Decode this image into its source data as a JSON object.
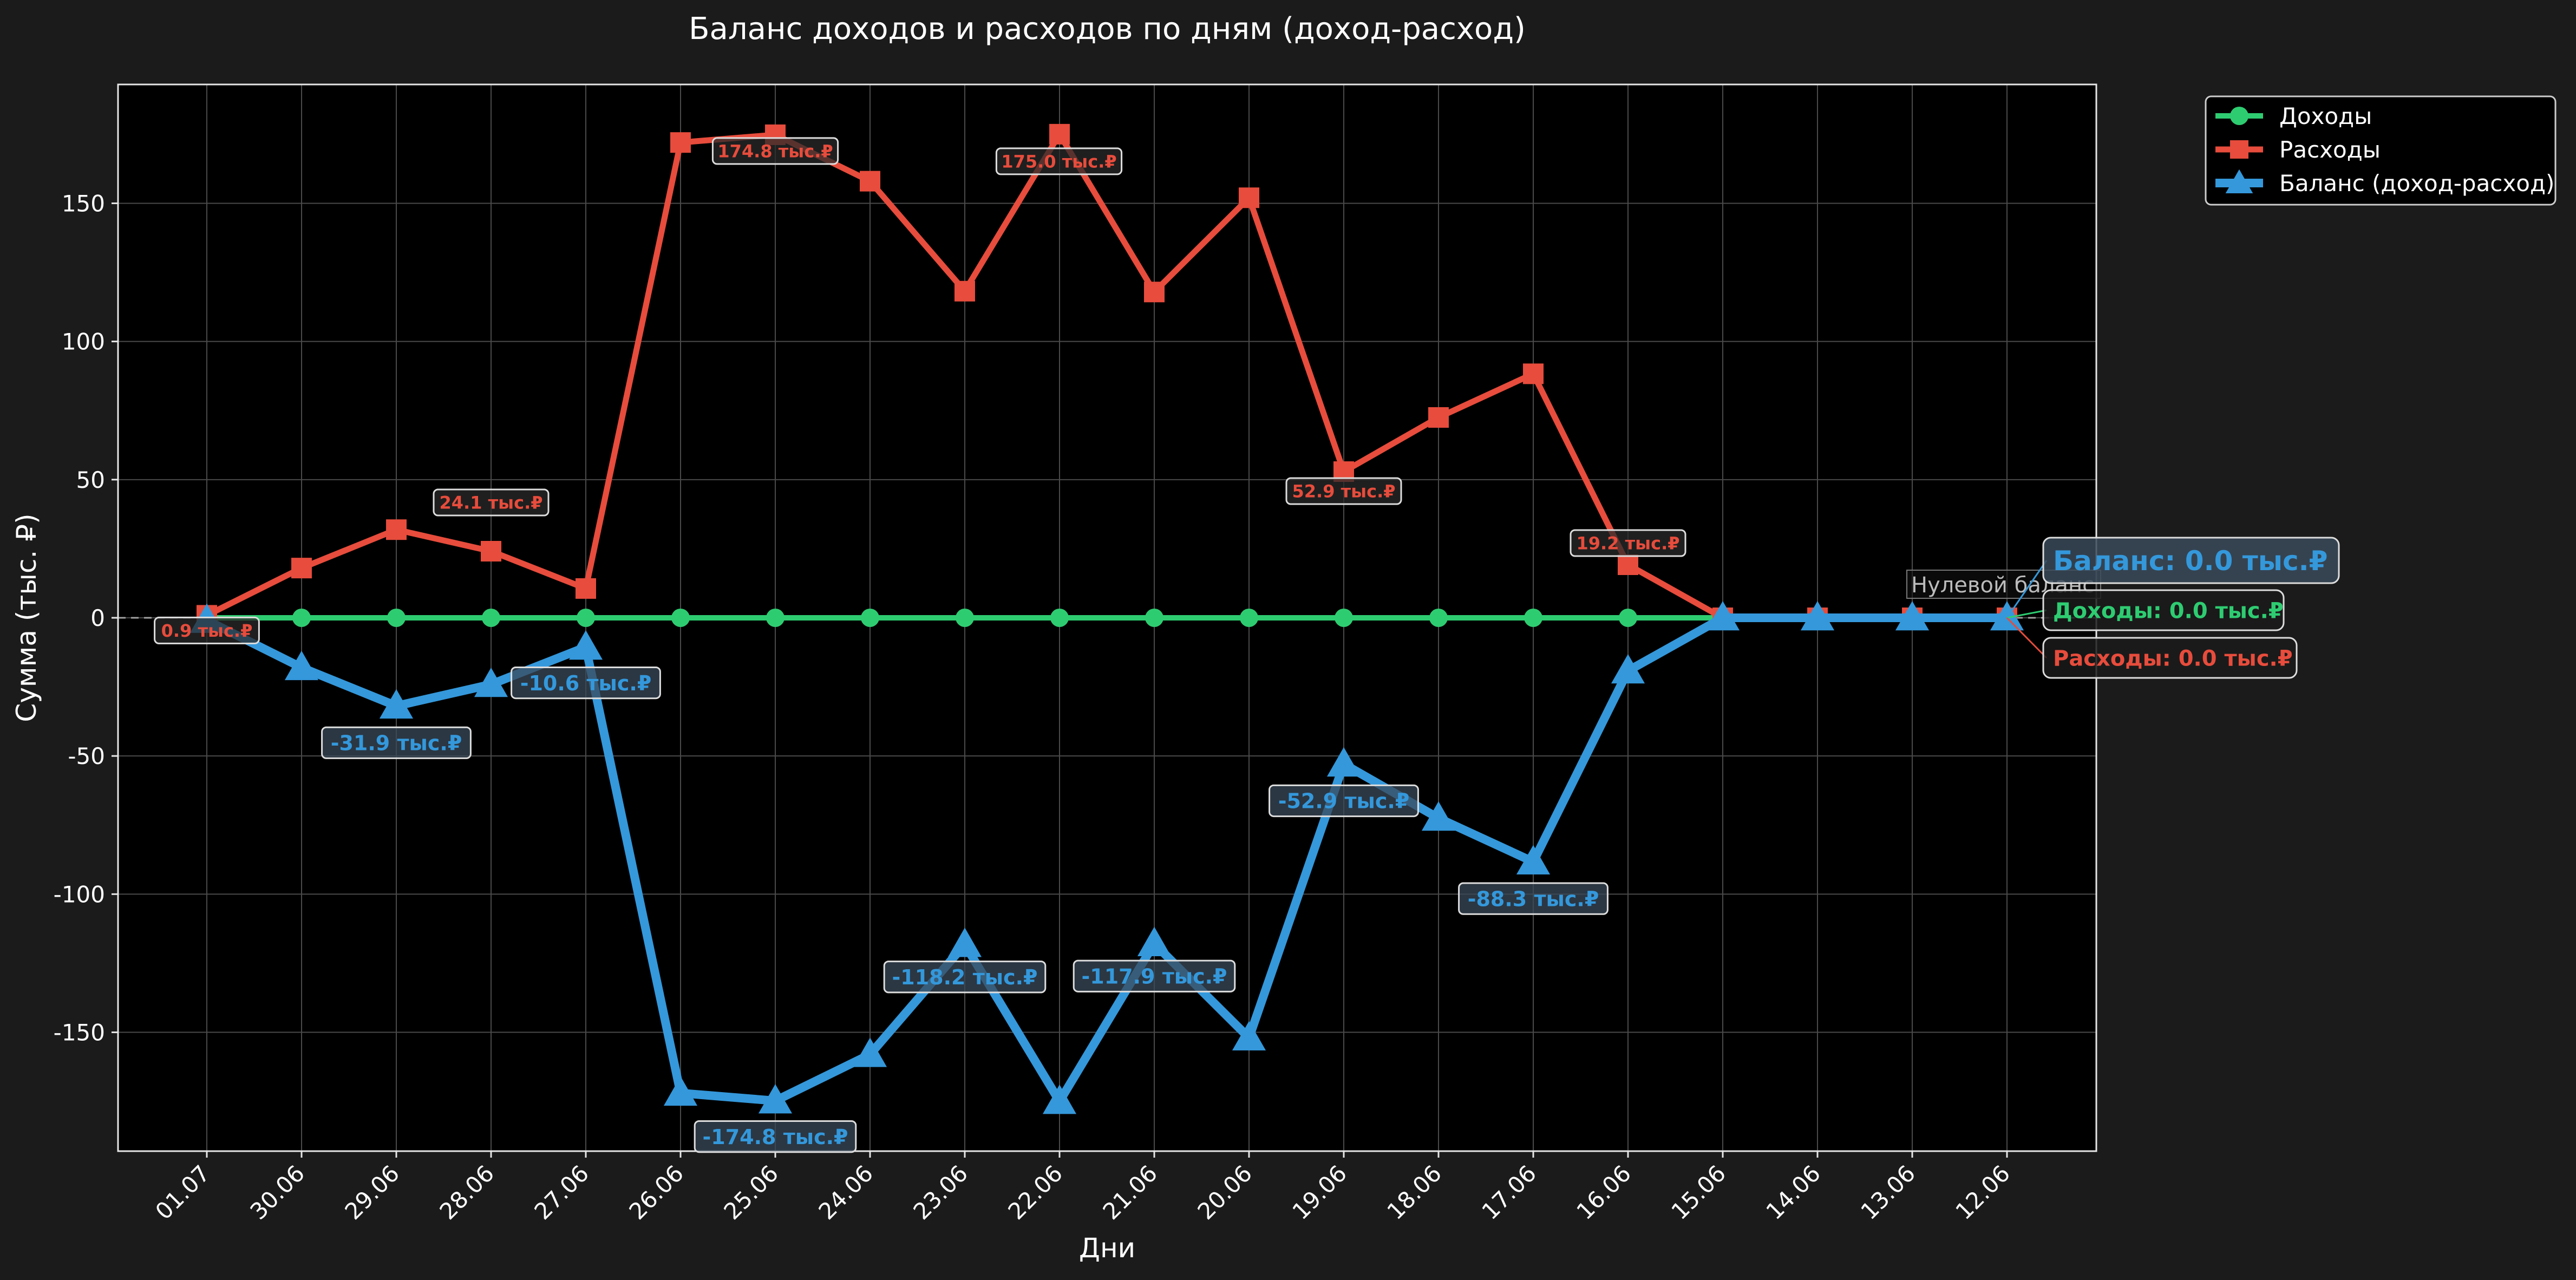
{
  "chart_data": {
    "type": "line",
    "title": "Баланс доходов и расходов по дням (доход-расход)",
    "xlabel": "Дни",
    "ylabel": "Сумма (тыс. ₽)",
    "ylim": [
      -193,
      193
    ],
    "yticks": [
      -150,
      -100,
      -50,
      0,
      50,
      100,
      150
    ],
    "ytick_labels": [
      "-150",
      "-100",
      "-50",
      "0",
      "50",
      "100",
      "150"
    ],
    "grid": true,
    "legend_position": "outside-top-right",
    "categories": [
      "01.07",
      "30.06",
      "29.06",
      "28.06",
      "27.06",
      "26.06",
      "25.06",
      "24.06",
      "23.06",
      "22.06",
      "21.06",
      "20.06",
      "19.06",
      "18.06",
      "17.06",
      "16.06",
      "15.06",
      "14.06",
      "13.06",
      "12.06"
    ],
    "series": [
      {
        "name": "Доходы",
        "color": "#2ecc71",
        "marker": "circle",
        "values": [
          0,
          0,
          0,
          0,
          0,
          0,
          0,
          0,
          0,
          0,
          0,
          0,
          0,
          0,
          0,
          0,
          0,
          0,
          0,
          0
        ]
      },
      {
        "name": "Расходы",
        "color": "#e74c3c",
        "marker": "square",
        "values": [
          0.9,
          18,
          31.9,
          24.1,
          10.6,
          172,
          174.8,
          158,
          118.2,
          175.0,
          117.9,
          152,
          52.9,
          72.5,
          88.3,
          19.2,
          0,
          0,
          0,
          0
        ]
      },
      {
        "name": "Баланс (доход-расход)",
        "color": "#3498db",
        "marker": "triangle",
        "values": [
          -0.9,
          -18,
          -31.9,
          -24.1,
          -10.6,
          -172,
          -174.8,
          -158,
          -118.2,
          -175.0,
          -117.9,
          -152,
          -52.9,
          -72.5,
          -88.3,
          -19.2,
          0,
          0,
          0,
          0
        ]
      }
    ],
    "point_labels": {
      "expense": [
        {
          "i": 0,
          "text": "0.9 тыс.₽"
        },
        {
          "i": 3,
          "text": "24.1 тыс.₽"
        },
        {
          "i": 6,
          "text": "174.8 тыс.₽"
        },
        {
          "i": 9,
          "text": "175.0 тыс.₽"
        },
        {
          "i": 12,
          "text": "52.9 тыс.₽"
        },
        {
          "i": 15,
          "text": "19.2 тыс.₽"
        }
      ],
      "balance": [
        {
          "i": 2,
          "text": "-31.9 тыс.₽"
        },
        {
          "i": 4,
          "text": "-10.6 тыс.₽"
        },
        {
          "i": 6,
          "text": "-174.8 тыс.₽"
        },
        {
          "i": 8,
          "text": "-118.2 тыс.₽"
        },
        {
          "i": 10,
          "text": "-117.9 тыс.₽"
        },
        {
          "i": 12,
          "text": "-52.9 тыс.₽"
        },
        {
          "i": 14,
          "text": "-88.3 тыс.₽"
        }
      ]
    },
    "zero_line_label": "Нулевой баланс",
    "final_annotations": {
      "balance": "Баланс: 0.0 тыс.₽",
      "income": "Доходы: 0.0 тыс.₽",
      "expense": "Расходы: 0.0 тыс.₽"
    }
  }
}
